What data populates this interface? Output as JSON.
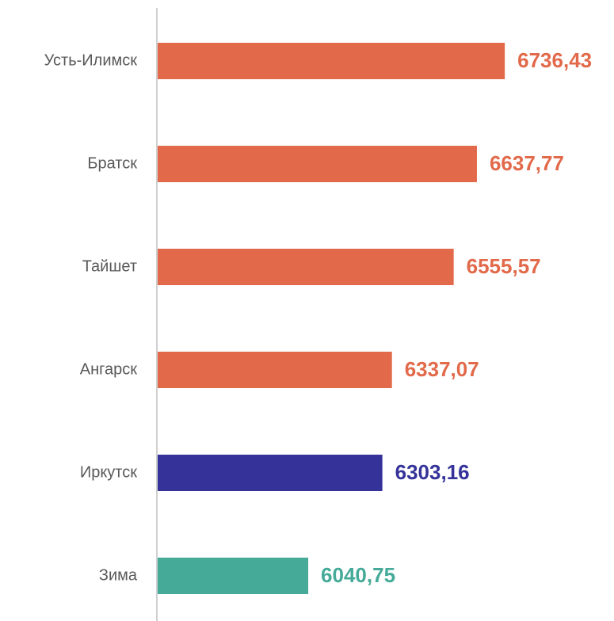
{
  "chart_data": {
    "type": "hbar",
    "categories": [
      "Усть-Илимск",
      "Братск",
      "Тайшет",
      "Ангарск",
      "Иркутск",
      "Зима"
    ],
    "values": [
      6736.43,
      6637.77,
      6555.57,
      6337.07,
      6303.16,
      6040.75
    ],
    "value_labels": [
      "6736,43",
      "6637,77",
      "6555,57",
      "6337,07",
      "6303,16",
      "6040,75"
    ],
    "colors": [
      "#e2694a",
      "#e2694a",
      "#e2694a",
      "#e2694a",
      "#35339a",
      "#45aa98"
    ],
    "xlim": [
      5505,
      7123
    ]
  }
}
